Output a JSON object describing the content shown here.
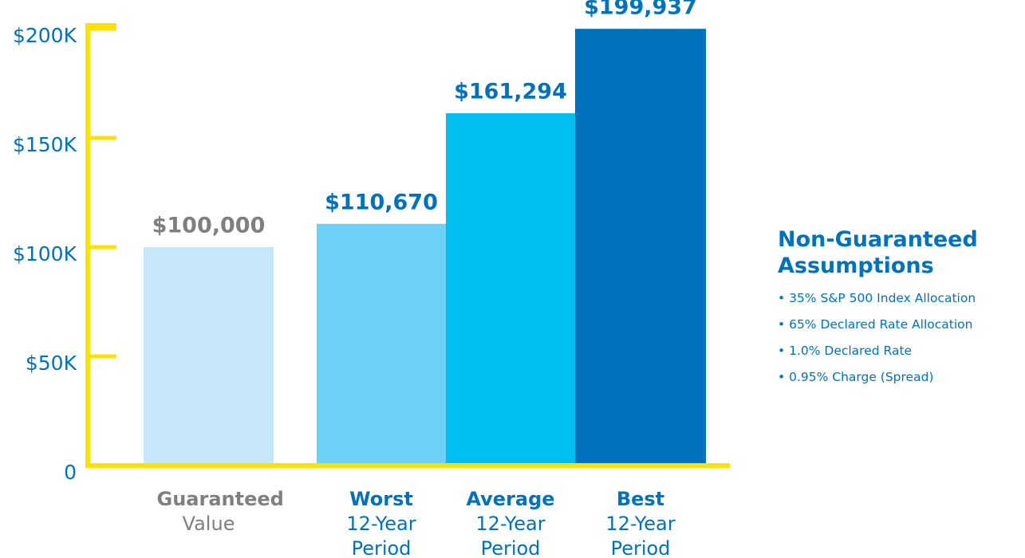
{
  "chart_data": {
    "type": "bar",
    "categories": [
      "Guaranteed",
      "Worst",
      "Average",
      "Best"
    ],
    "category_details": [
      "Value",
      "12-Year Period",
      "12-Year Period",
      "12-Year Period"
    ],
    "values": [
      100000,
      110670,
      161294,
      199937
    ],
    "value_labels": [
      "$100,000",
      "$110,670",
      "$161,294",
      "$199,937"
    ],
    "colors": [
      "#c5e7f8",
      "#6dd0f6",
      "#00bdf2",
      "#0071bc"
    ],
    "label_colors": [
      "#7f7f7f",
      "#0072bc",
      "#0072bc",
      "#0072bc"
    ],
    "axis_color": "#ffe100",
    "ylim": [
      0,
      200000
    ],
    "yticks": [
      0,
      {
        "value": 50000,
        "label": "$50K"
      },
      {
        "value": 100000,
        "label": "$100K"
      },
      {
        "value": 150000,
        "label": "$150K"
      },
      {
        "value": 200000,
        "label": "$200K"
      }
    ],
    "side_panel": {
      "title": "Non-Guaranteed Assumptions",
      "items": [
        "35% S&P 500 Index Allocation",
        "65% Declared Rate Allocation",
        "1.0% Declared Rate",
        "0.95% Charge (Spread)"
      ]
    }
  }
}
